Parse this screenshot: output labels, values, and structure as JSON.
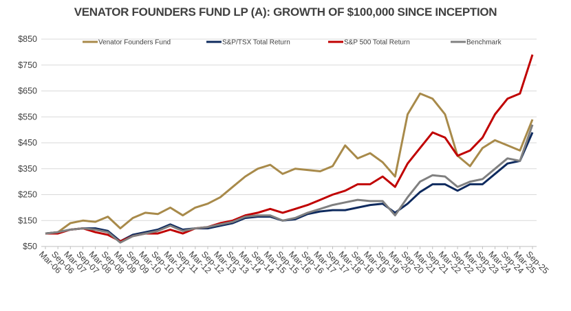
{
  "chart_data": {
    "type": "line",
    "title": "VENATOR FOUNDERS FUND LP (A):  GROWTH OF $100,000 SINCE INCEPTION",
    "xlabel": "",
    "ylabel": "",
    "ylim": [
      50,
      850
    ],
    "yticks": [
      "$50",
      "$150",
      "$250",
      "$350",
      "$450",
      "$550",
      "$650",
      "$750",
      "$850"
    ],
    "ytick_values": [
      50,
      150,
      250,
      350,
      450,
      550,
      650,
      750,
      850
    ],
    "grid": "horizontal",
    "legend": "top",
    "x": [
      "Mar-06",
      "Sep-06",
      "Mar-07",
      "Sep-07",
      "Mar-08",
      "Sep-08",
      "Mar-09",
      "Sep-09",
      "Mar-10",
      "Sep-10",
      "Mar-11",
      "Sep-11",
      "Mar-12",
      "Sep-12",
      "Mar-13",
      "Sep-13",
      "Mar-14",
      "Sep-14",
      "Mar-15",
      "Sep-15",
      "Mar-16",
      "Sep-16",
      "Mar-17",
      "Sep-17",
      "Mar-18",
      "Sep-18",
      "Mar-19",
      "Sep-19",
      "Mar-20",
      "Sep-20",
      "Mar-21",
      "Sep-21",
      "Mar-22",
      "Sep-22",
      "Mar-23",
      "Sep-23",
      "Mar-24",
      "Sep-24",
      "Mar-25",
      "Sep-25"
    ],
    "series": [
      {
        "name": "Venator Founders Fund",
        "color": "#A88A4A",
        "values": [
          100,
          105,
          140,
          150,
          145,
          165,
          120,
          160,
          180,
          175,
          200,
          170,
          200,
          215,
          240,
          280,
          320,
          350,
          365,
          330,
          350,
          345,
          340,
          360,
          440,
          390,
          410,
          375,
          320,
          560,
          640,
          620,
          560,
          400,
          360,
          430,
          460,
          440,
          420,
          540
        ]
      },
      {
        "name": "S&P/TSX Total Return",
        "color": "#0E2A5E",
        "values": [
          100,
          105,
          115,
          120,
          120,
          110,
          70,
          95,
          105,
          115,
          135,
          115,
          120,
          120,
          130,
          140,
          160,
          165,
          165,
          150,
          155,
          175,
          185,
          190,
          190,
          200,
          210,
          215,
          180,
          215,
          260,
          290,
          290,
          265,
          290,
          290,
          330,
          370,
          380,
          490
        ]
      },
      {
        "name": "S&P 500  Total Return",
        "color": "#C00000",
        "values": [
          100,
          100,
          115,
          120,
          105,
          95,
          70,
          90,
          100,
          100,
          115,
          100,
          120,
          125,
          140,
          150,
          170,
          180,
          195,
          180,
          195,
          210,
          230,
          250,
          265,
          290,
          290,
          320,
          280,
          370,
          430,
          490,
          470,
          400,
          420,
          470,
          560,
          620,
          640,
          790
        ]
      },
      {
        "name": "Benchmark",
        "color": "#808080",
        "values": [
          100,
          105,
          115,
          120,
          115,
          105,
          65,
          90,
          100,
          110,
          130,
          110,
          120,
          125,
          135,
          145,
          165,
          170,
          170,
          150,
          160,
          180,
          195,
          210,
          220,
          230,
          225,
          225,
          170,
          240,
          300,
          325,
          320,
          280,
          300,
          310,
          350,
          390,
          380,
          520
        ]
      }
    ]
  }
}
